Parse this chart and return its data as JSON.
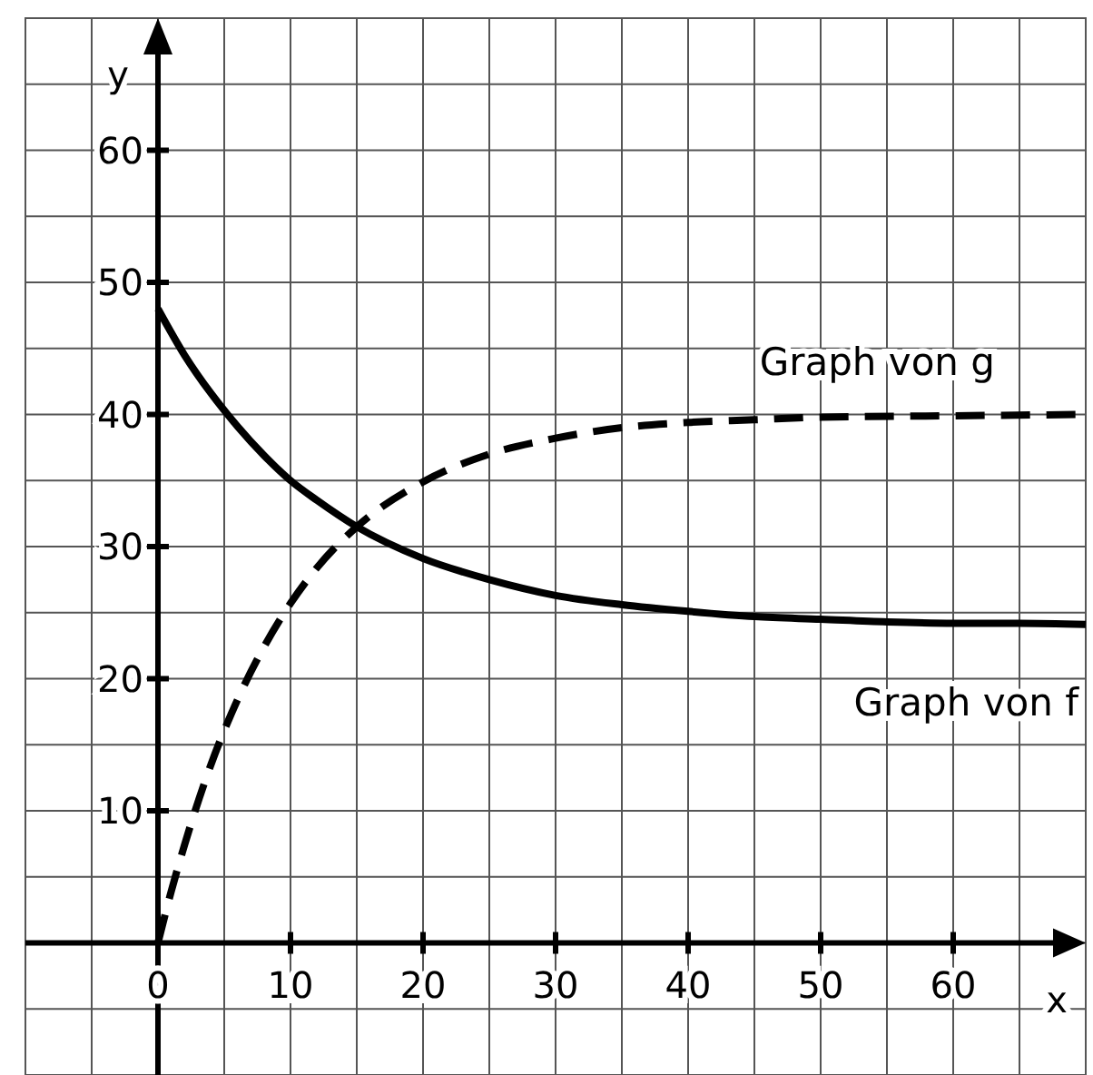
{
  "chart_data": {
    "type": "line",
    "xlabel": "x",
    "ylabel": "y",
    "xlim": [
      -10,
      70
    ],
    "ylim": [
      -10,
      70
    ],
    "xticks": [
      0,
      10,
      20,
      30,
      40,
      50,
      60
    ],
    "yticks": [
      10,
      20,
      30,
      40,
      50,
      60
    ],
    "grid": true,
    "series": [
      {
        "name": "Graph von g",
        "color": "#000000",
        "line_style": "dashed",
        "x": [
          0,
          1,
          2,
          4,
          6,
          8,
          10,
          12,
          15,
          20,
          25,
          30,
          35,
          40,
          45,
          50,
          60,
          70
        ],
        "values": [
          0,
          3.9,
          7.4,
          13.5,
          18.4,
          22.4,
          25.7,
          28.4,
          31.5,
          34.9,
          37.0,
          38.2,
          39.0,
          39.4,
          39.6,
          39.8,
          39.9,
          40.0
        ]
      },
      {
        "name": "Graph von f",
        "color": "#000000",
        "line_style": "solid",
        "x": [
          0,
          2,
          4,
          6,
          8,
          10,
          12,
          15,
          20,
          25,
          30,
          35,
          40,
          45,
          50,
          55,
          60,
          65,
          70
        ],
        "values": [
          48,
          44.5,
          41.6,
          39.1,
          36.9,
          35.0,
          33.5,
          31.5,
          29.1,
          27.5,
          26.3,
          25.6,
          25.1,
          24.7,
          24.5,
          24.3,
          24.2,
          24.2,
          24.1
        ]
      }
    ]
  }
}
